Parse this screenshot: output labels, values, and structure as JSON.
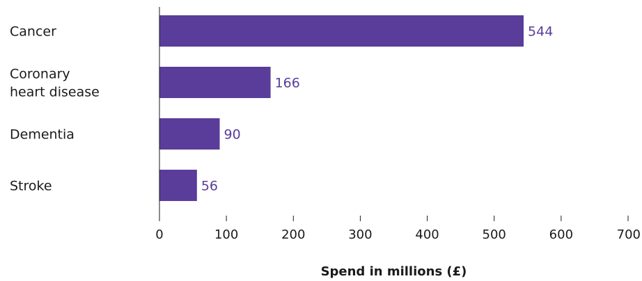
{
  "chart_data": {
    "type": "bar",
    "orientation": "horizontal",
    "categories": [
      [
        "Cancer"
      ],
      [
        "Coronary",
        "heart disease"
      ],
      [
        "Dementia"
      ],
      [
        "Stroke"
      ]
    ],
    "values": [
      544,
      166,
      90,
      56
    ],
    "xlabel": "Spend in millions (£)",
    "ylabel": "",
    "xlim": [
      0,
      700
    ],
    "xticks": [
      0,
      100,
      200,
      300,
      400,
      500,
      600,
      700
    ],
    "grid": false,
    "legend": "none",
    "bar_color": "#5a3d9a",
    "value_label_color": "#5a3d9a"
  }
}
